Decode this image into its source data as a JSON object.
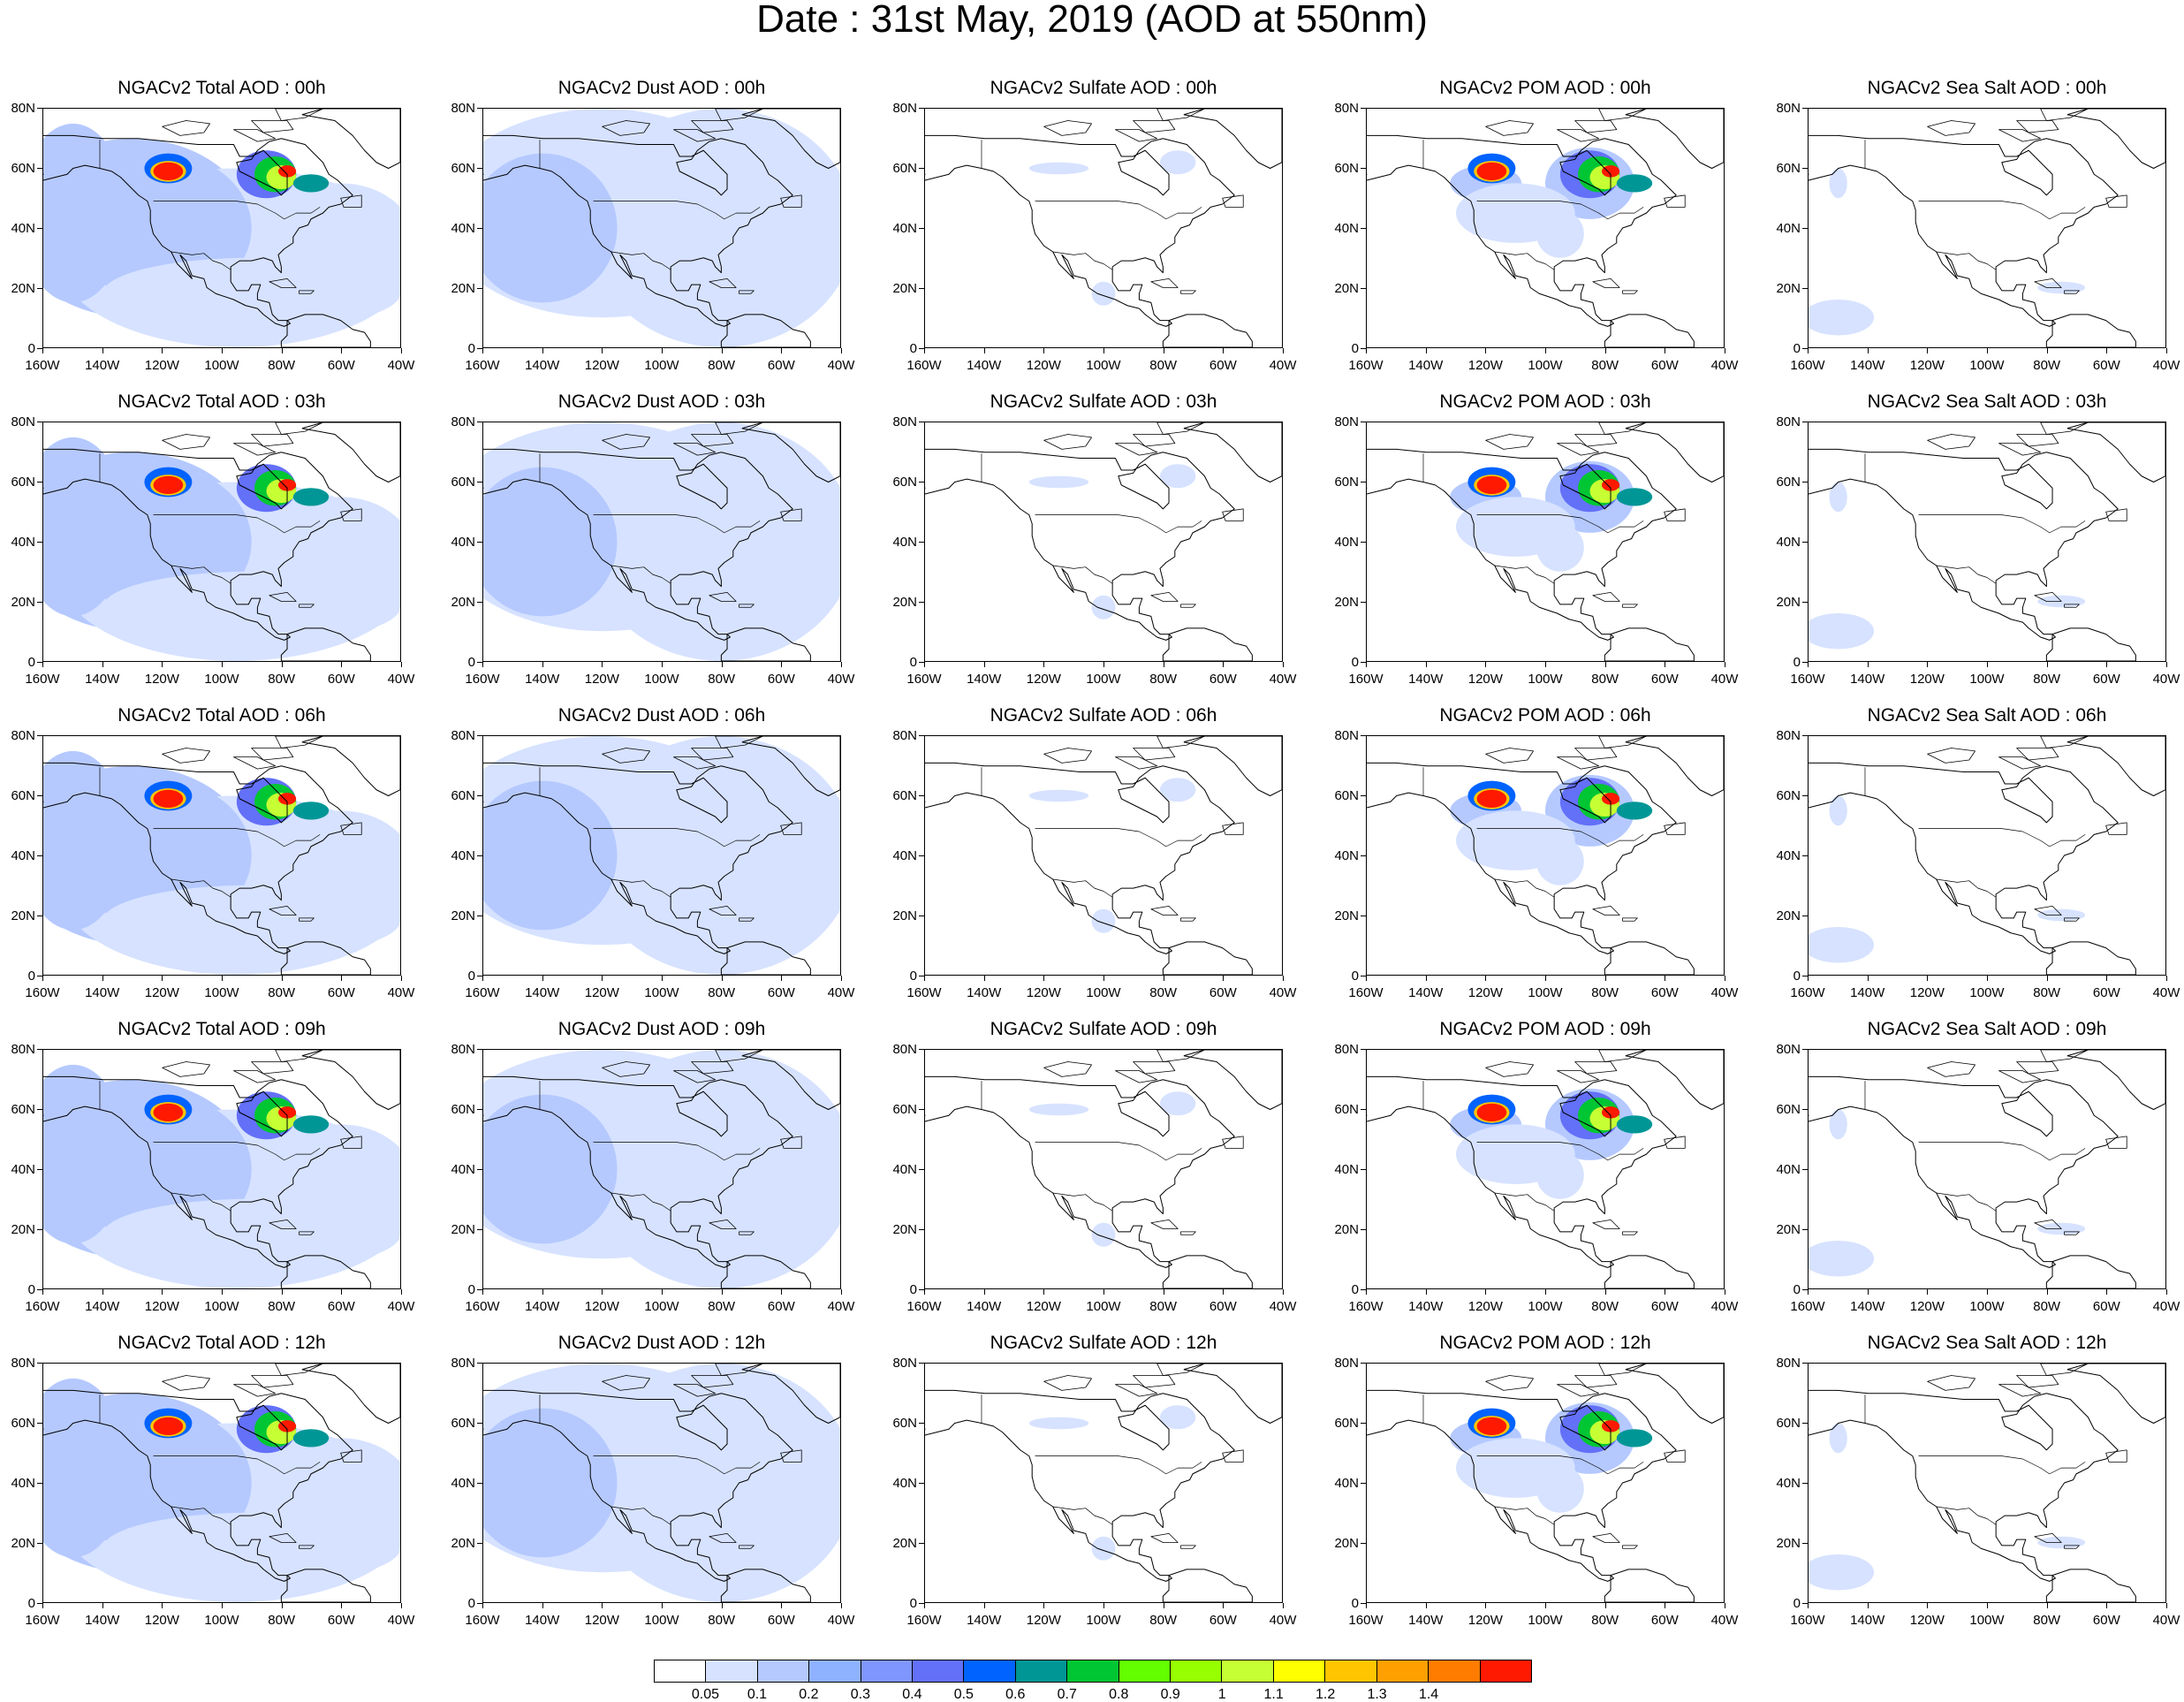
{
  "title": "Date : 31st May, 2019 (AOD at 550nm)",
  "rows": [
    [
      "NGACv2 Total AOD : 00h",
      "NGACv2 Dust AOD : 00h",
      "NGACv2 Sulfate AOD : 00h",
      "NGACv2 POM AOD : 00h",
      "NGACv2 Sea Salt AOD : 00h"
    ],
    [
      "NGACv2 Total AOD : 03h",
      "NGACv2 Dust AOD : 03h",
      "NGACv2 Sulfate AOD : 03h",
      "NGACv2 POM AOD : 03h",
      "NGACv2 Sea Salt AOD : 03h"
    ],
    [
      "NGACv2 Total AOD : 06h",
      "NGACv2 Dust AOD : 06h",
      "NGACv2 Sulfate AOD : 06h",
      "NGACv2 POM AOD : 06h",
      "NGACv2 Sea Salt AOD : 06h"
    ],
    [
      "NGACv2 Total AOD : 09h",
      "NGACv2 Dust AOD : 09h",
      "NGACv2 Sulfate AOD : 09h",
      "NGACv2 POM AOD : 09h",
      "NGACv2 Sea Salt  AOD : 09h"
    ],
    [
      "NGACv2 Total AOD  : 12h",
      "NGACv2 Dust AOD : 12h",
      "NGACv2 Sulfate AOD : 12h",
      "NGACv2 POM  AOD : 12h",
      "NGACv2 Sea Salt  AOD : 12h"
    ]
  ],
  "lat_labels": [
    "80N",
    "60N",
    "40N",
    "20N",
    "0"
  ],
  "lon_labels": [
    "160W",
    "140W",
    "120W",
    "100W",
    "80W",
    "60W",
    "40W"
  ],
  "colorbar": {
    "labels": [
      "0.05",
      "0.1",
      "0.2",
      "0.3",
      "0.4",
      "0.5",
      "0.6",
      "0.7",
      "0.8",
      "0.9",
      "1",
      "1.1",
      "1.2",
      "1.3",
      "1.4"
    ],
    "colors": [
      "#ffffff",
      "#d6e2ff",
      "#b5c9ff",
      "#8eb2ff",
      "#7f96ff",
      "#6370f8",
      "#0063ff",
      "#009696",
      "#00c633",
      "#63ff00",
      "#96ff00",
      "#c6ff33",
      "#ffff00",
      "#ffc600",
      "#ffa000",
      "#ff7c00",
      "#ff1900"
    ]
  },
  "panel_types": [
    "total",
    "dust",
    "sulfate",
    "pom",
    "seasalt"
  ]
}
